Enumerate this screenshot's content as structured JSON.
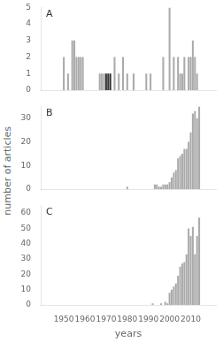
{
  "chart_data": [
    {
      "type": "bar",
      "annotations": [
        "A"
      ],
      "x": [
        1948,
        1949,
        1950,
        1951,
        1952,
        1953,
        1954,
        1955,
        1956,
        1957,
        1958,
        1959,
        1960,
        1961,
        1962,
        1963,
        1964,
        1965,
        1966,
        1967,
        1968,
        1969,
        1970,
        1971,
        1972,
        1973,
        1974,
        1975,
        1976,
        1977,
        1978,
        1979,
        1980,
        1981,
        1982,
        1983,
        1984,
        1985,
        1986,
        1987,
        1988,
        1989,
        1990,
        1991,
        1992,
        1993,
        1994,
        1995,
        1996,
        1997,
        1998,
        1999,
        2000,
        2001,
        2002,
        2003,
        2004,
        2005,
        2006,
        2007,
        2008,
        2009,
        2010,
        2011,
        2012,
        2013,
        2014
      ],
      "values": [
        0,
        0,
        2,
        0,
        1,
        0,
        3,
        3,
        2,
        2,
        2,
        2,
        0,
        0,
        0,
        0,
        0,
        0,
        0,
        1,
        1,
        1,
        1,
        1,
        1,
        0,
        2,
        0,
        1,
        0,
        2,
        0,
        1,
        0,
        0,
        1,
        0,
        0,
        0,
        0,
        0,
        1,
        0,
        1,
        0,
        0,
        0,
        0,
        0,
        2,
        0,
        0,
        5,
        0,
        2,
        0,
        2,
        1,
        1,
        2,
        0,
        2,
        2,
        3,
        2,
        1,
        0
      ],
      "colors": [
        "#aaaaaa",
        "#aaaaaa",
        "#aaaaaa",
        "#aaaaaa",
        "#aaaaaa",
        "#aaaaaa",
        "#aaaaaa",
        "#aaaaaa",
        "#aaaaaa",
        "#aaaaaa",
        "#aaaaaa",
        "#aaaaaa",
        "#aaaaaa",
        "#aaaaaa",
        "#aaaaaa",
        "#aaaaaa",
        "#aaaaaa",
        "#aaaaaa",
        "#aaaaaa",
        "#aaaaaa",
        "#aaaaaa",
        "#aaaaaa",
        "#333333",
        "#333333",
        "#333333",
        "#aaaaaa",
        "#aaaaaa",
        "#aaaaaa",
        "#aaaaaa",
        "#aaaaaa",
        "#aaaaaa",
        "#aaaaaa",
        "#aaaaaa",
        "#aaaaaa",
        "#aaaaaa",
        "#aaaaaa",
        "#aaaaaa",
        "#aaaaaa",
        "#aaaaaa",
        "#aaaaaa",
        "#aaaaaa",
        "#aaaaaa",
        "#aaaaaa",
        "#aaaaaa",
        "#aaaaaa",
        "#aaaaaa",
        "#aaaaaa",
        "#aaaaaa",
        "#aaaaaa",
        "#aaaaaa",
        "#aaaaaa",
        "#aaaaaa",
        "#aaaaaa",
        "#aaaaaa",
        "#aaaaaa",
        "#aaaaaa",
        "#aaaaaa",
        "#aaaaaa",
        "#aaaaaa",
        "#aaaaaa",
        "#aaaaaa",
        "#aaaaaa",
        "#aaaaaa",
        "#aaaaaa",
        "#aaaaaa",
        "#aaaaaa",
        "#aaaaaa"
      ],
      "xlim": [
        1945,
        2016
      ],
      "xticks": [
        1950,
        1960,
        1970,
        1980,
        1990,
        2000,
        2010
      ],
      "ylim": [
        0,
        5
      ],
      "yticks": [
        0,
        1,
        2,
        3,
        4,
        5
      ],
      "grid": false,
      "tick_labels": "y"
    },
    {
      "type": "bar",
      "annotations": [
        "B"
      ],
      "ylabel": "number of articles",
      "x": [
        1948,
        1949,
        1950,
        1951,
        1952,
        1953,
        1954,
        1955,
        1956,
        1957,
        1958,
        1959,
        1960,
        1961,
        1962,
        1963,
        1964,
        1965,
        1966,
        1967,
        1968,
        1969,
        1970,
        1971,
        1972,
        1973,
        1974,
        1975,
        1976,
        1977,
        1978,
        1979,
        1980,
        1981,
        1982,
        1983,
        1984,
        1985,
        1986,
        1987,
        1988,
        1989,
        1990,
        1991,
        1992,
        1993,
        1994,
        1995,
        1996,
        1997,
        1998,
        1999,
        2000,
        2001,
        2002,
        2003,
        2004,
        2005,
        2006,
        2007,
        2008,
        2009,
        2010,
        2011,
        2012,
        2013,
        2014
      ],
      "values": [
        0,
        0,
        0,
        0,
        0,
        0,
        0,
        0,
        0,
        0,
        0,
        0,
        0,
        0,
        0,
        0,
        0,
        0,
        0,
        0,
        0,
        0,
        0,
        0,
        0,
        0,
        0,
        0,
        0,
        0,
        0,
        0,
        1,
        0,
        0,
        0,
        0,
        0,
        0,
        0,
        0,
        0,
        0,
        0,
        0,
        2,
        2,
        1,
        1,
        2,
        2,
        2,
        3,
        5,
        7,
        8,
        13,
        14,
        15,
        17,
        17,
        20,
        24,
        32,
        33,
        30,
        35
      ],
      "color": "#aaaaaa",
      "xlim": [
        1945,
        2016
      ],
      "xticks": [
        1950,
        1960,
        1970,
        1980,
        1990,
        2000,
        2010
      ],
      "ylim": [
        0,
        35
      ],
      "yticks": [
        0,
        10,
        20,
        30
      ],
      "grid": false,
      "tick_labels": "y"
    },
    {
      "type": "bar",
      "annotations": [
        "C"
      ],
      "xlabel": "years",
      "x": [
        1948,
        1949,
        1950,
        1951,
        1952,
        1953,
        1954,
        1955,
        1956,
        1957,
        1958,
        1959,
        1960,
        1961,
        1962,
        1963,
        1964,
        1965,
        1966,
        1967,
        1968,
        1969,
        1970,
        1971,
        1972,
        1973,
        1974,
        1975,
        1976,
        1977,
        1978,
        1979,
        1980,
        1981,
        1982,
        1983,
        1984,
        1985,
        1986,
        1987,
        1988,
        1989,
        1990,
        1991,
        1992,
        1993,
        1994,
        1995,
        1996,
        1997,
        1998,
        1999,
        2000,
        2001,
        2002,
        2003,
        2004,
        2005,
        2006,
        2007,
        2008,
        2009,
        2010,
        2011,
        2012,
        2013,
        2014
      ],
      "values": [
        0,
        0,
        0,
        0,
        0,
        0,
        0,
        0,
        0,
        0,
        0,
        0,
        0,
        0,
        0,
        0,
        0,
        0,
        0,
        0,
        0,
        0,
        0,
        0,
        0,
        0,
        0,
        0,
        0,
        0,
        0,
        0,
        0,
        0,
        0,
        0,
        0,
        0,
        0,
        0,
        0,
        0,
        0,
        0,
        1,
        0,
        0,
        0,
        1,
        0,
        2,
        1,
        8,
        10,
        12,
        14,
        19,
        25,
        27,
        28,
        33,
        50,
        45,
        51,
        33,
        45,
        57
      ],
      "color": "#aaaaaa",
      "xlim": [
        1945,
        2016
      ],
      "xticks": [
        1950,
        1960,
        1970,
        1980,
        1990,
        2000,
        2010
      ],
      "ylim": [
        0,
        65
      ],
      "yticks": [
        0,
        10,
        20,
        30,
        40,
        50,
        60
      ],
      "grid": false
    }
  ]
}
